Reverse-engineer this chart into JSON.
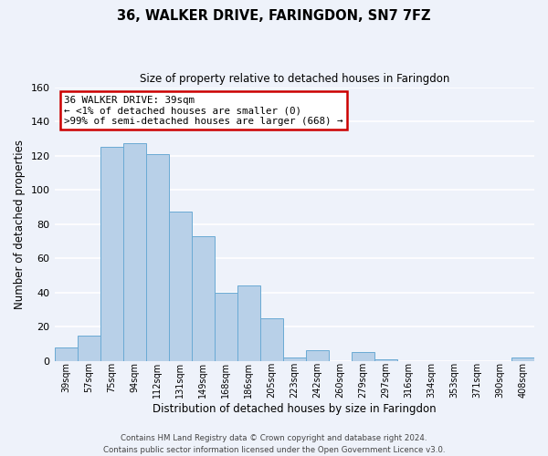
{
  "title": "36, WALKER DRIVE, FARINGDON, SN7 7FZ",
  "subtitle": "Size of property relative to detached houses in Faringdon",
  "xlabel": "Distribution of detached houses by size in Faringdon",
  "ylabel": "Number of detached properties",
  "categories": [
    "39sqm",
    "57sqm",
    "75sqm",
    "94sqm",
    "112sqm",
    "131sqm",
    "149sqm",
    "168sqm",
    "186sqm",
    "205sqm",
    "223sqm",
    "242sqm",
    "260sqm",
    "279sqm",
    "297sqm",
    "316sqm",
    "334sqm",
    "353sqm",
    "371sqm",
    "390sqm",
    "408sqm"
  ],
  "values": [
    8,
    15,
    125,
    127,
    121,
    87,
    73,
    40,
    44,
    25,
    2,
    6,
    0,
    5,
    1,
    0,
    0,
    0,
    0,
    0,
    2
  ],
  "bar_color": "#b8d0e8",
  "bar_edge_color": "#6aaad4",
  "background_color": "#eef2fa",
  "grid_color": "#ffffff",
  "ylim": [
    0,
    160
  ],
  "yticks": [
    0,
    20,
    40,
    60,
    80,
    100,
    120,
    140,
    160
  ],
  "annotation_title": "36 WALKER DRIVE: 39sqm",
  "annotation_line1": "← <1% of detached houses are smaller (0)",
  "annotation_line2": ">99% of semi-detached houses are larger (668) →",
  "annotation_box_color": "#ffffff",
  "annotation_box_edge": "#cc0000",
  "footer_line1": "Contains HM Land Registry data © Crown copyright and database right 2024.",
  "footer_line2": "Contains public sector information licensed under the Open Government Licence v3.0."
}
